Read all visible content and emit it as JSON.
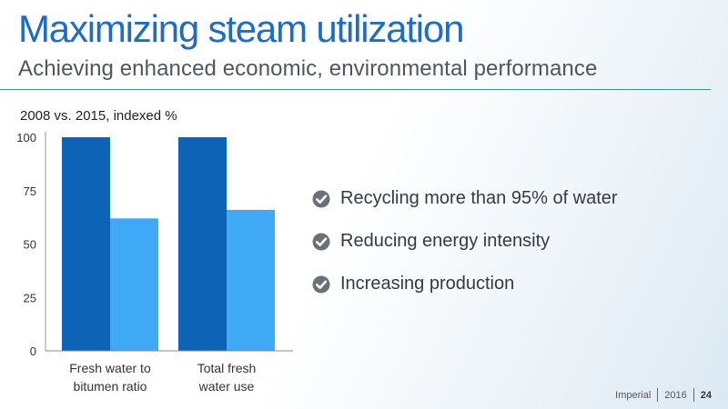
{
  "slide": {
    "title": "Maximizing steam utilization",
    "subtitle": "Achieving enhanced economic, environmental performance"
  },
  "chart_caption": "2008 vs. 2015, indexed %",
  "chart_data": {
    "type": "bar",
    "title": "2008 vs. 2015, indexed %",
    "categories": [
      "Fresh water to bitumen ratio",
      "Total fresh water use"
    ],
    "category_lines": [
      [
        "Fresh water to",
        "bitumen ratio"
      ],
      [
        "Total fresh",
        "water use"
      ]
    ],
    "series": [
      {
        "values": [
          100,
          100
        ],
        "color": "#0d63b6"
      },
      {
        "values": [
          62,
          66
        ],
        "color": "#3fa9f5"
      }
    ],
    "ylim": [
      0,
      100
    ],
    "yticks": [
      0,
      25,
      50,
      75,
      100
    ]
  },
  "bullets": [
    {
      "text": "Recycling more than 95% of water",
      "icon": "check-circle-icon"
    },
    {
      "text": "Reducing energy intensity",
      "icon": "check-circle-icon"
    },
    {
      "text": "Increasing production",
      "icon": "check-circle-icon"
    }
  ],
  "footer": {
    "brand": "Imperial",
    "year": "2016",
    "page": "24"
  },
  "colors": {
    "title": "#1f6cc0",
    "rule": "#3a86d6",
    "icon": "#6b7178"
  }
}
